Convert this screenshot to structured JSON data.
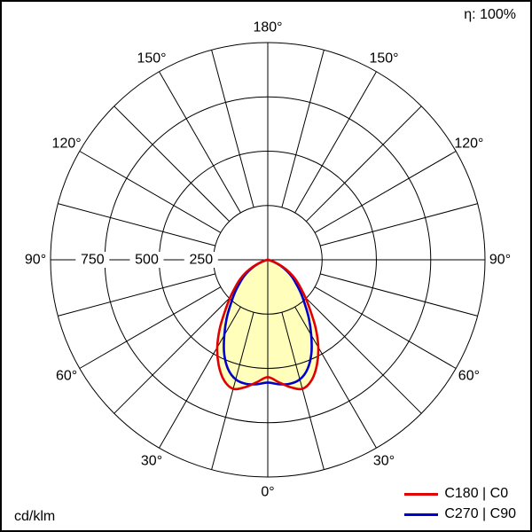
{
  "header": {
    "efficiency": "η: 100%"
  },
  "footer": {
    "unit": "cd/klm"
  },
  "legend": [
    {
      "label": "C180 | C0",
      "color": "#e00000"
    },
    {
      "label": "C270 | C90",
      "color": "#0000cc"
    }
  ],
  "chart_data": {
    "type": "polar",
    "subtype": "luminous-intensity-distribution",
    "unit": "cd/klm",
    "efficiency_percent": 100,
    "radial_ticks": [
      250,
      500,
      750
    ],
    "radial_max": 1000,
    "spoke_step_deg": 15,
    "angle_labels_deg": [
      0,
      30,
      60,
      90,
      120,
      150,
      180
    ],
    "fill_color": "#ffffbb",
    "grid_color": "#000000",
    "angles_deg": [
      0,
      5,
      10,
      15,
      20,
      25,
      30,
      35,
      40,
      45,
      50,
      55,
      60,
      65,
      70,
      75,
      80,
      85,
      90,
      95,
      100,
      105,
      110,
      115,
      120,
      125,
      130,
      135,
      140,
      145,
      150,
      155,
      160,
      165,
      170,
      175,
      180
    ],
    "series": [
      {
        "name": "C180 | C0",
        "color": "#e00000",
        "values": [
          540,
          565,
          595,
          615,
          590,
          535,
          465,
          385,
          305,
          245,
          195,
          155,
          115,
          75,
          40,
          15,
          5,
          0,
          0,
          0,
          0,
          0,
          0,
          0,
          0,
          0,
          0,
          0,
          0,
          0,
          0,
          0,
          0,
          0,
          0,
          0,
          0
        ]
      },
      {
        "name": "C270 | C90",
        "color": "#0000cc",
        "values": [
          565,
          575,
          580,
          570,
          535,
          475,
          400,
          330,
          265,
          215,
          170,
          135,
          100,
          65,
          30,
          10,
          0,
          0,
          0,
          0,
          0,
          0,
          0,
          0,
          0,
          0,
          0,
          0,
          0,
          0,
          0,
          0,
          0,
          0,
          0,
          0,
          0
        ]
      }
    ]
  }
}
